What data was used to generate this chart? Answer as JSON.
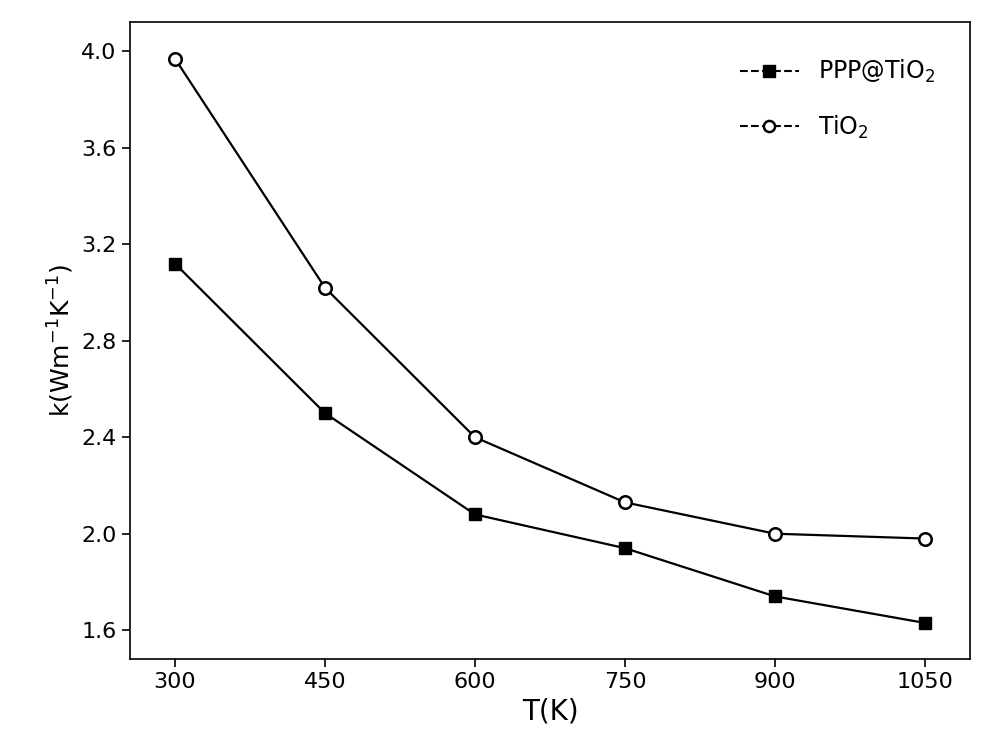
{
  "ppp_tio2_x": [
    300,
    450,
    600,
    750,
    900,
    1050
  ],
  "ppp_tio2_y": [
    3.12,
    2.5,
    2.08,
    1.94,
    1.74,
    1.63
  ],
  "tio2_x": [
    300,
    450,
    600,
    750,
    900,
    1050
  ],
  "tio2_y": [
    3.97,
    3.02,
    2.4,
    2.13,
    2.0,
    1.98
  ],
  "xlabel": "T(K)",
  "ylabel": "k(Wm$^{-1}$K$^{-1}$)",
  "xlim": [
    255,
    1095
  ],
  "ylim": [
    1.48,
    4.12
  ],
  "xticks": [
    300,
    450,
    600,
    750,
    900,
    1050
  ],
  "yticks": [
    1.6,
    2.0,
    2.4,
    2.8,
    3.2,
    3.6,
    4.0
  ],
  "legend_ppp": "PPP@TiO$_2$",
  "legend_tio2": "TiO$_2$",
  "line_color": "#000000",
  "background_color": "#ffffff",
  "marker_size_square": 9,
  "marker_size_circle": 9,
  "linewidth": 1.6,
  "xlabel_fontsize": 20,
  "ylabel_fontsize": 18,
  "tick_fontsize": 16,
  "legend_fontsize": 17
}
